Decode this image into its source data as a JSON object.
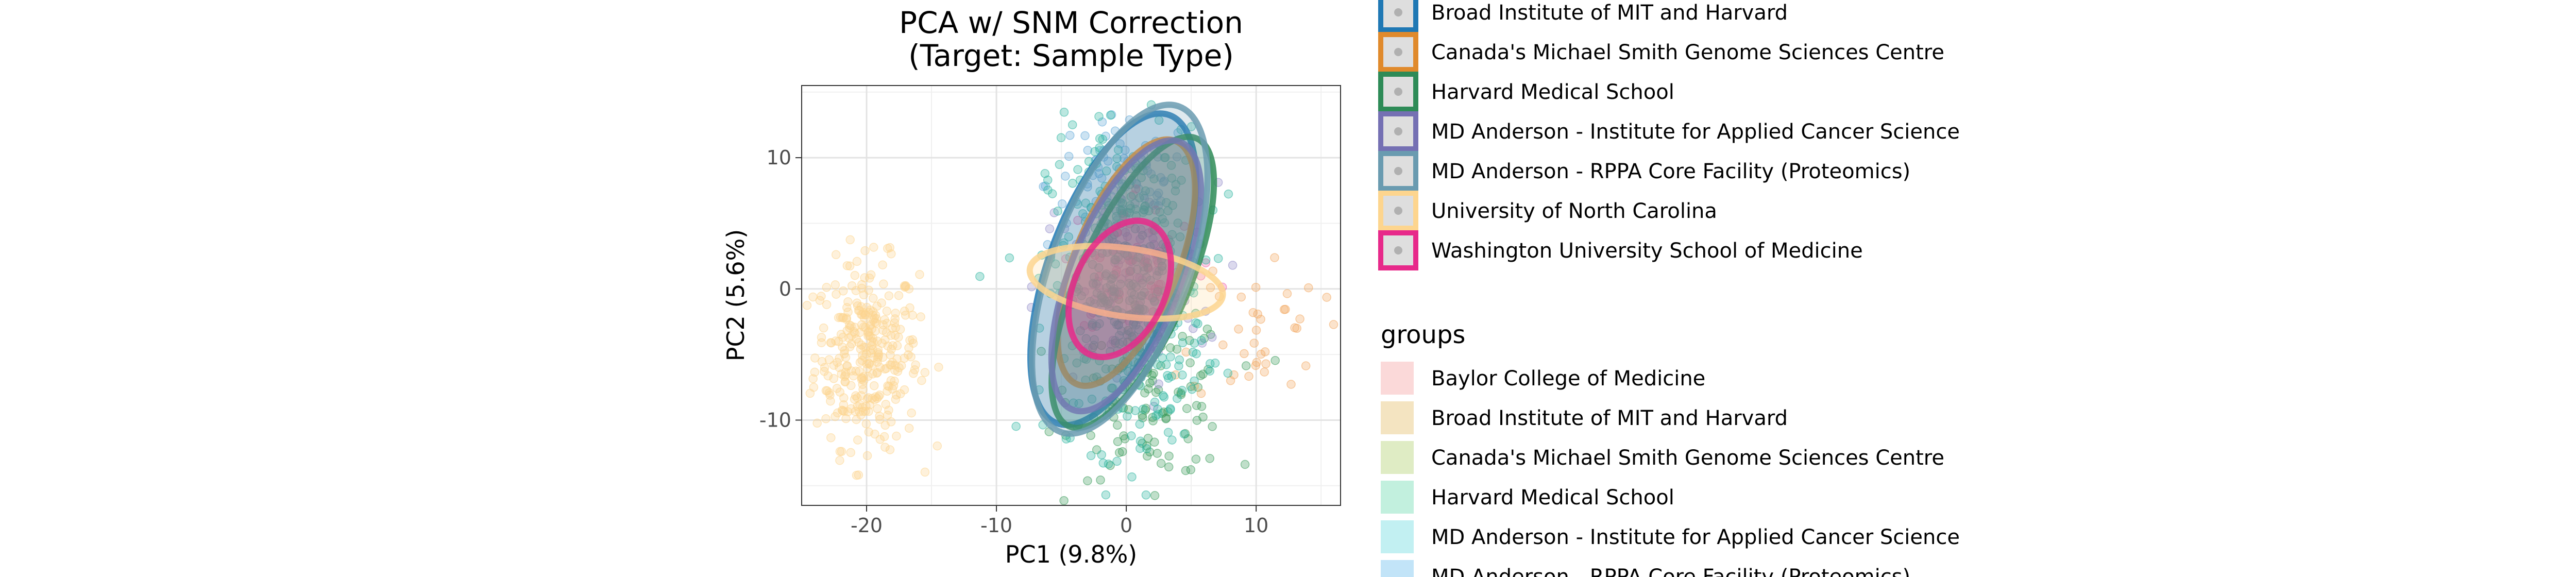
{
  "chart_data": {
    "type": "scatter",
    "title": "PCA w/ SNM Correction\n(Target: Sample Type)",
    "xlabel": "PC1 (9.8%)",
    "ylabel": "PC2 (5.6%)",
    "xlim": [
      -25,
      16.5
    ],
    "ylim": [
      -16.5,
      15.5
    ],
    "xticks": [
      -20,
      -10,
      0,
      10
    ],
    "yticks": [
      -10,
      0,
      10
    ],
    "tick_labels_x": [
      "-20",
      "-10",
      "0",
      "10"
    ],
    "tick_labels_y": [
      "-10",
      "0",
      "10"
    ],
    "grid": true,
    "legend_placement": "right",
    "ellipses_title": "",
    "ellipses": [
      {
        "name": "Broad Institute of MIT and Harvard",
        "color": "#1f78b4",
        "cx": -1.0,
        "cy": 1.5,
        "rx": 5.0,
        "ry": 12.5,
        "angle": 20
      },
      {
        "name": "Canada's Michael Smith Genome Sciences Centre",
        "color": "#e08a2c",
        "cx": 0.0,
        "cy": 2.0,
        "rx": 4.0,
        "ry": 10.0,
        "angle": 22
      },
      {
        "name": "Harvard Medical School",
        "color": "#2e8b57",
        "cx": 0.5,
        "cy": 0.5,
        "rx": 4.2,
        "ry": 12.0,
        "angle": 24
      },
      {
        "name": "MD Anderson - Institute for Applied Cancer Science",
        "color": "#7570b3",
        "cx": 0.0,
        "cy": 1.0,
        "rx": 4.3,
        "ry": 11.0,
        "angle": 22
      },
      {
        "name": "MD Anderson - RPPA Core Facility (Proteomics)",
        "color": "#6a9bb0",
        "cx": -0.5,
        "cy": 1.5,
        "rx": 5.3,
        "ry": 13.2,
        "angle": 20
      },
      {
        "name": "University of North Carolina",
        "color": "#fdd58e",
        "cx": 0.0,
        "cy": 0.5,
        "rx": 7.5,
        "ry": 2.6,
        "angle": 8
      },
      {
        "name": "Washington University School of Medicine",
        "color": "#e7298a",
        "cx": -0.5,
        "cy": 0.0,
        "rx": 3.5,
        "ry": 5.5,
        "angle": 25
      }
    ],
    "series": [
      {
        "name": "University of North Carolina",
        "color": "#fdd58e",
        "cx": -20,
        "cy": -5,
        "sx": 2.0,
        "sy": 3.5,
        "n": 320
      },
      {
        "name": "Broad Institute of MIT and Harvard",
        "color": "#5fa8d8",
        "cx": -0.5,
        "cy": 8,
        "sx": 2.8,
        "sy": 2.5,
        "n": 90
      },
      {
        "name": "Harvard Medical School",
        "color": "#3a9a5b",
        "cx": 2,
        "cy": -8,
        "sx": 3.0,
        "sy": 3.2,
        "n": 130
      },
      {
        "name": "MD Anderson - Institute for Applied Cancer Science",
        "color": "#8f8ac8",
        "cx": 0,
        "cy": 0,
        "sx": 3.5,
        "sy": 4.0,
        "n": 80
      },
      {
        "name": "Washington University School of Medicine",
        "color": "#ee5fa5",
        "cx": 1,
        "cy": 2,
        "sx": 3.0,
        "sy": 3.0,
        "n": 60
      },
      {
        "name": "Canada's Michael Smith Genome Sciences Centre",
        "color": "#f2a860",
        "cx": 10,
        "cy": -3,
        "sx": 2.5,
        "sy": 3.0,
        "n": 40
      },
      {
        "name": "MD Anderson - RPPA Core Facility (Proteomics)",
        "color": "#2bb5a0",
        "cx": 0,
        "cy": 0,
        "sx": 3.0,
        "sy": 6.0,
        "n": 400
      }
    ],
    "legend_top": {
      "title": "",
      "entries": [
        {
          "label": "Broad Institute of MIT and Harvard",
          "color": "#1f78b4"
        },
        {
          "label": "Canada's Michael Smith Genome Sciences Centre",
          "color": "#e08a2c"
        },
        {
          "label": "Harvard Medical School",
          "color": "#2e8b57"
        },
        {
          "label": "MD Anderson - Institute for Applied Cancer Science",
          "color": "#7570b3"
        },
        {
          "label": "MD Anderson - RPPA Core Facility (Proteomics)",
          "color": "#6a9bb0"
        },
        {
          "label": "University of North Carolina",
          "color": "#fdd58e"
        },
        {
          "label": "Washington University School of Medicine",
          "color": "#e7298a"
        }
      ]
    },
    "legend_groups": {
      "title": "groups",
      "entries": [
        {
          "label": "Baylor College of Medicine",
          "color": "#fbd9d9"
        },
        {
          "label": "Broad Institute of MIT and Harvard",
          "color": "#f4e4c1"
        },
        {
          "label": "Canada's Michael Smith Genome Sciences Centre",
          "color": "#dfecc4"
        },
        {
          "label": "Harvard Medical School",
          "color": "#c2f0de"
        },
        {
          "label": "MD Anderson - Institute for Applied Cancer Science",
          "color": "#c2f0f2"
        },
        {
          "label": "MD Anderson - RPPA Core Facility (Proteomics)",
          "color": "#c2e4f8"
        }
      ]
    }
  }
}
